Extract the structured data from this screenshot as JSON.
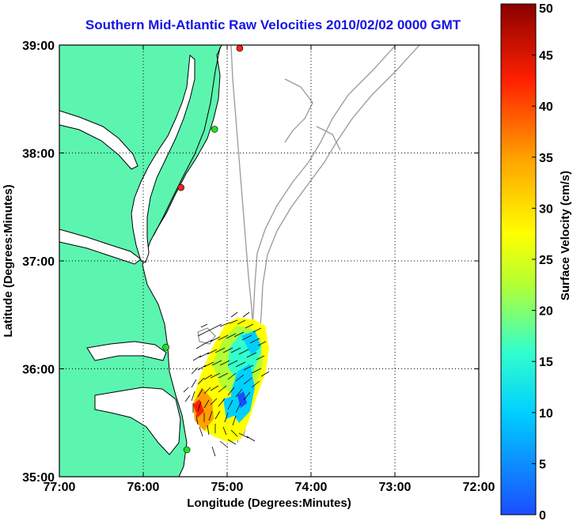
{
  "title": "Southern Mid-Atlantic Raw Velocities 2010/02/02 0000 GMT",
  "map": {
    "xlabel": "Longitude (Degrees:Minutes)",
    "ylabel": "Latitude (Degrees:Minutes)",
    "lon_ticks": [
      "77:00",
      "76:00",
      "75:00",
      "74:00",
      "73:00",
      "72:00"
    ],
    "lat_ticks": [
      "39:00",
      "38:00",
      "37:00",
      "36:00",
      "35:00"
    ],
    "lon_range": [
      -77,
      -72
    ],
    "lat_range": [
      35,
      39
    ],
    "grid": "dotted",
    "land_color": "#5cf5b0",
    "coast_color": "#000000",
    "bathymetry_color": "#999999"
  },
  "colorbar": {
    "label": "Surface Velocity (cm/s)",
    "ticks": [
      "50",
      "45",
      "40",
      "35",
      "30",
      "25",
      "20",
      "15",
      "10",
      "5",
      "0"
    ],
    "min": 0,
    "max": 50,
    "colors": [
      "#1a4dff",
      "#00d0ff",
      "#33ffcc",
      "#b3ff33",
      "#ffff00",
      "#ffa000",
      "#ff2000",
      "#8b0000"
    ]
  },
  "stations": [
    {
      "lon": -74.85,
      "lat": 38.97,
      "color": "#ff2020"
    },
    {
      "lon": -75.15,
      "lat": 38.22,
      "color": "#20e020"
    },
    {
      "lon": -75.55,
      "lat": 37.68,
      "color": "#ff2020"
    },
    {
      "lon": -75.73,
      "lat": 36.2,
      "color": "#20e020"
    },
    {
      "lon": -75.48,
      "lat": 35.25,
      "color": "#20e020"
    }
  ]
}
